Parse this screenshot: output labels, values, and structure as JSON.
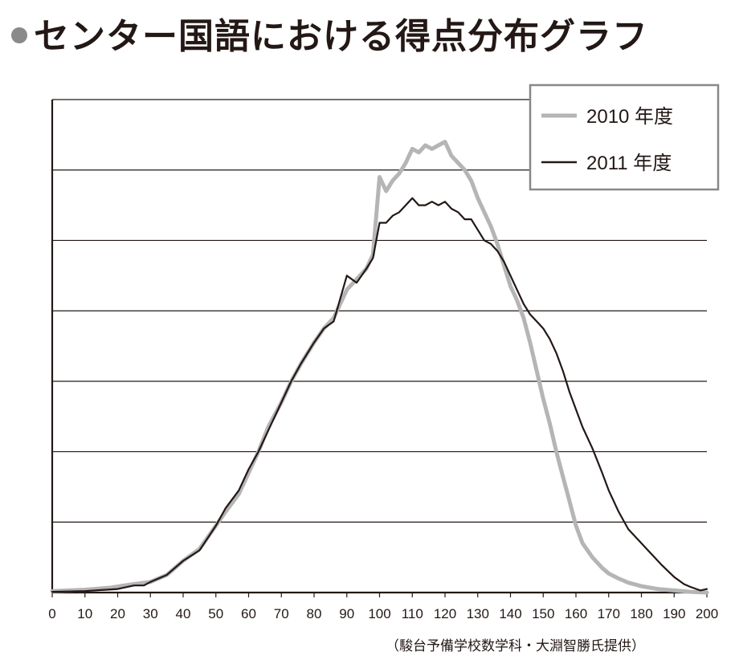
{
  "title": "センター国語における得点分布グラフ",
  "credit": "（駿台予備学校数学科・大淵智勝氏提供）",
  "chart_data": {
    "type": "line",
    "xlim": [
      0,
      200
    ],
    "ylim": [
      0,
      7
    ],
    "grid": "horizontal",
    "legend_position": "top-right",
    "x_ticks": [
      "0",
      "10",
      "20",
      "30",
      "40",
      "50",
      "60",
      "70",
      "80",
      "90",
      "100",
      "110",
      "120",
      "130",
      "140",
      "150",
      "160",
      "170",
      "180",
      "190",
      "200"
    ],
    "series": [
      {
        "name": "2010 年度",
        "color": "#b5b5b5",
        "points": [
          [
            0,
            0.02
          ],
          [
            10,
            0.04
          ],
          [
            18,
            0.07
          ],
          [
            22,
            0.1
          ],
          [
            25,
            0.12
          ],
          [
            30,
            0.15
          ],
          [
            35,
            0.25
          ],
          [
            40,
            0.45
          ],
          [
            45,
            0.62
          ],
          [
            50,
            0.95
          ],
          [
            53,
            1.15
          ],
          [
            57,
            1.4
          ],
          [
            60,
            1.7
          ],
          [
            63,
            2.0
          ],
          [
            66,
            2.35
          ],
          [
            70,
            2.7
          ],
          [
            73,
            3.0
          ],
          [
            76,
            3.25
          ],
          [
            80,
            3.55
          ],
          [
            83,
            3.75
          ],
          [
            86,
            3.9
          ],
          [
            90,
            4.3
          ],
          [
            93,
            4.45
          ],
          [
            96,
            4.6
          ],
          [
            98,
            4.8
          ],
          [
            100,
            5.9
          ],
          [
            102,
            5.7
          ],
          [
            104,
            5.85
          ],
          [
            106,
            5.95
          ],
          [
            108,
            6.1
          ],
          [
            110,
            6.3
          ],
          [
            112,
            6.25
          ],
          [
            114,
            6.35
          ],
          [
            116,
            6.3
          ],
          [
            118,
            6.35
          ],
          [
            120,
            6.4
          ],
          [
            122,
            6.2
          ],
          [
            124,
            6.1
          ],
          [
            126,
            6.0
          ],
          [
            128,
            5.85
          ],
          [
            130,
            5.6
          ],
          [
            132,
            5.4
          ],
          [
            134,
            5.2
          ],
          [
            136,
            4.95
          ],
          [
            138,
            4.65
          ],
          [
            140,
            4.35
          ],
          [
            142,
            4.15
          ],
          [
            144,
            3.9
          ],
          [
            146,
            3.55
          ],
          [
            148,
            3.15
          ],
          [
            150,
            2.75
          ],
          [
            152,
            2.4
          ],
          [
            154,
            2.0
          ],
          [
            156,
            1.65
          ],
          [
            158,
            1.3
          ],
          [
            160,
            0.95
          ],
          [
            162,
            0.7
          ],
          [
            165,
            0.5
          ],
          [
            168,
            0.35
          ],
          [
            170,
            0.27
          ],
          [
            173,
            0.2
          ],
          [
            176,
            0.14
          ],
          [
            180,
            0.09
          ],
          [
            185,
            0.05
          ],
          [
            190,
            0.03
          ],
          [
            195,
            0.01
          ],
          [
            200,
            0.0
          ]
        ]
      },
      {
        "name": "2011 年度",
        "color": "#231815",
        "points": [
          [
            0,
            0.01
          ],
          [
            10,
            0.02
          ],
          [
            20,
            0.05
          ],
          [
            25,
            0.1
          ],
          [
            28,
            0.1
          ],
          [
            30,
            0.15
          ],
          [
            35,
            0.25
          ],
          [
            40,
            0.45
          ],
          [
            45,
            0.6
          ],
          [
            50,
            0.95
          ],
          [
            53,
            1.2
          ],
          [
            57,
            1.45
          ],
          [
            60,
            1.75
          ],
          [
            63,
            2.0
          ],
          [
            66,
            2.3
          ],
          [
            70,
            2.7
          ],
          [
            73,
            3.0
          ],
          [
            76,
            3.25
          ],
          [
            80,
            3.55
          ],
          [
            83,
            3.75
          ],
          [
            86,
            3.85
          ],
          [
            90,
            4.5
          ],
          [
            93,
            4.4
          ],
          [
            96,
            4.6
          ],
          [
            98,
            4.75
          ],
          [
            100,
            5.25
          ],
          [
            102,
            5.25
          ],
          [
            104,
            5.35
          ],
          [
            106,
            5.4
          ],
          [
            108,
            5.5
          ],
          [
            110,
            5.6
          ],
          [
            112,
            5.5
          ],
          [
            114,
            5.5
          ],
          [
            116,
            5.55
          ],
          [
            118,
            5.5
          ],
          [
            120,
            5.55
          ],
          [
            122,
            5.45
          ],
          [
            124,
            5.4
          ],
          [
            126,
            5.3
          ],
          [
            128,
            5.3
          ],
          [
            130,
            5.15
          ],
          [
            132,
            5.0
          ],
          [
            134,
            4.95
          ],
          [
            136,
            4.85
          ],
          [
            138,
            4.7
          ],
          [
            140,
            4.5
          ],
          [
            142,
            4.3
          ],
          [
            144,
            4.1
          ],
          [
            146,
            3.95
          ],
          [
            148,
            3.85
          ],
          [
            150,
            3.75
          ],
          [
            152,
            3.6
          ],
          [
            154,
            3.4
          ],
          [
            156,
            3.15
          ],
          [
            158,
            2.85
          ],
          [
            160,
            2.6
          ],
          [
            162,
            2.35
          ],
          [
            165,
            2.05
          ],
          [
            168,
            1.7
          ],
          [
            170,
            1.45
          ],
          [
            173,
            1.15
          ],
          [
            176,
            0.9
          ],
          [
            180,
            0.7
          ],
          [
            183,
            0.55
          ],
          [
            186,
            0.4
          ],
          [
            190,
            0.22
          ],
          [
            193,
            0.12
          ],
          [
            195,
            0.08
          ],
          [
            198,
            0.03
          ],
          [
            200,
            0.05
          ]
        ]
      }
    ]
  }
}
